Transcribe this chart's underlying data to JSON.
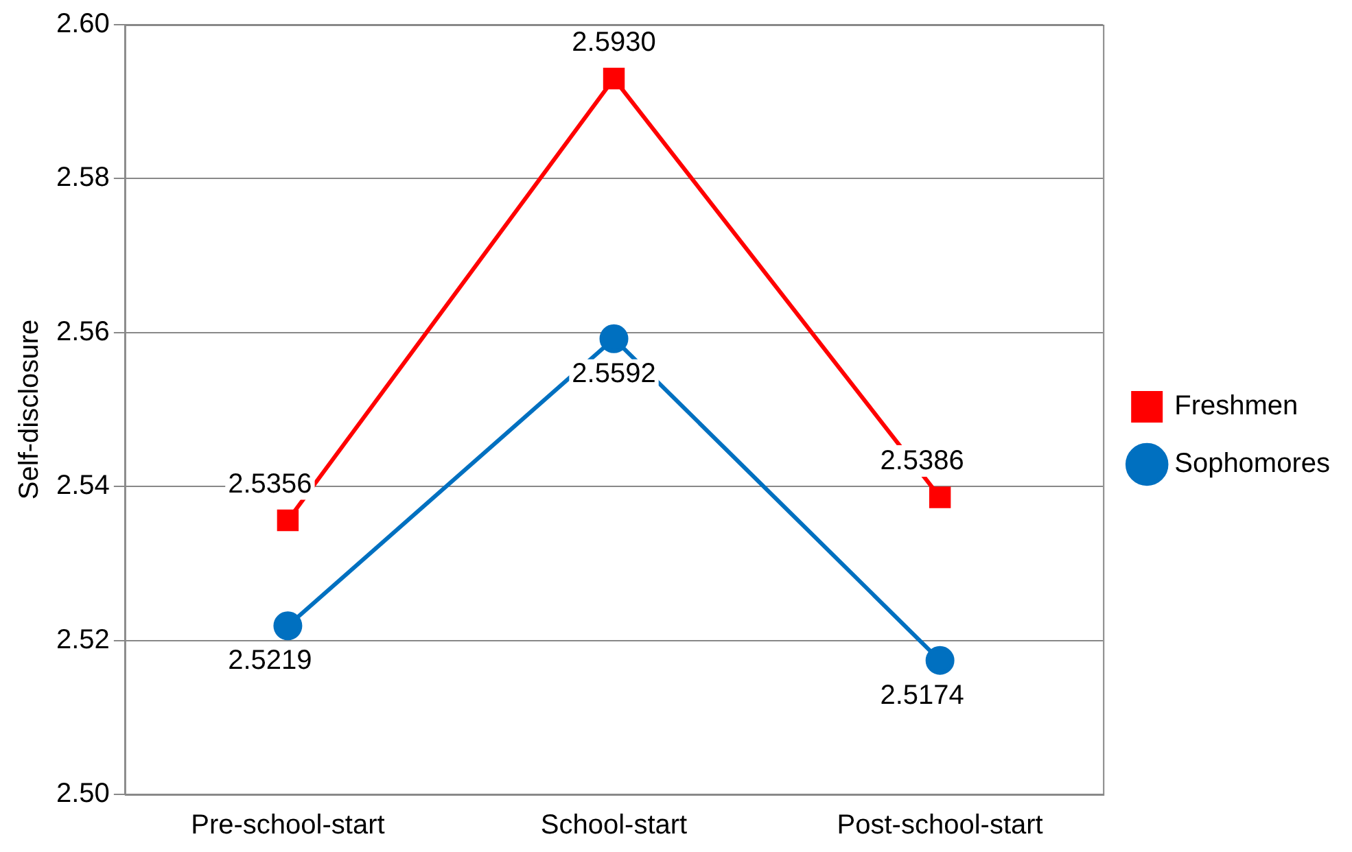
{
  "chart_data": {
    "type": "line",
    "ylabel": "Self-disclosure",
    "categories": [
      "Pre-school-start",
      "School-start",
      "Post-school-start"
    ],
    "series": [
      {
        "name": "Freshmen",
        "color": "#ff0000",
        "marker": "square",
        "values": [
          2.5356,
          2.593,
          2.5386
        ],
        "value_labels": [
          "2.5356",
          "2.5930",
          "2.5386"
        ]
      },
      {
        "name": "Sophomores",
        "color": "#0070c0",
        "marker": "circle",
        "values": [
          2.5219,
          2.5592,
          2.5174
        ],
        "value_labels": [
          "2.5219",
          "2.5592",
          "2.5174"
        ]
      }
    ],
    "ylim": [
      2.5,
      2.6
    ],
    "yticks": [
      {
        "value": 2.5,
        "label": "2.50"
      },
      {
        "value": 2.52,
        "label": "2.52"
      },
      {
        "value": 2.54,
        "label": "2.54"
      },
      {
        "value": 2.56,
        "label": "2.56"
      },
      {
        "value": 2.58,
        "label": "2.58"
      },
      {
        "value": 2.6,
        "label": "2.60"
      }
    ],
    "grid": "y",
    "legend": "right",
    "line_style": "solid"
  }
}
